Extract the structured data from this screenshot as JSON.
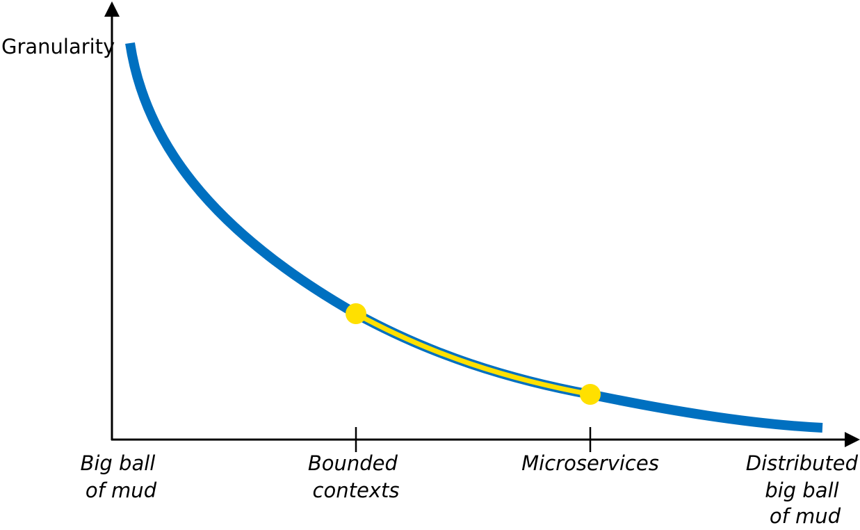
{
  "diagram": {
    "y_axis_label": "Granularity",
    "x_axis_labels": [
      {
        "name": "big-ball-of-mud",
        "lines": [
          "Big ball",
          "of mud"
        ]
      },
      {
        "name": "bounded-contexts",
        "lines": [
          "Bounded",
          "contexts"
        ]
      },
      {
        "name": "microservices",
        "lines": [
          "Microservices"
        ]
      },
      {
        "name": "distributed-big-ball-of-mud",
        "lines": [
          "Distributed",
          "big ball",
          "of mud"
        ]
      }
    ],
    "highlighted_range": [
      "Bounded contexts",
      "Microservices"
    ],
    "colors": {
      "curve": "#0070c0",
      "highlight": "#ffe000",
      "axis": "#000000",
      "text": "#000000"
    }
  }
}
